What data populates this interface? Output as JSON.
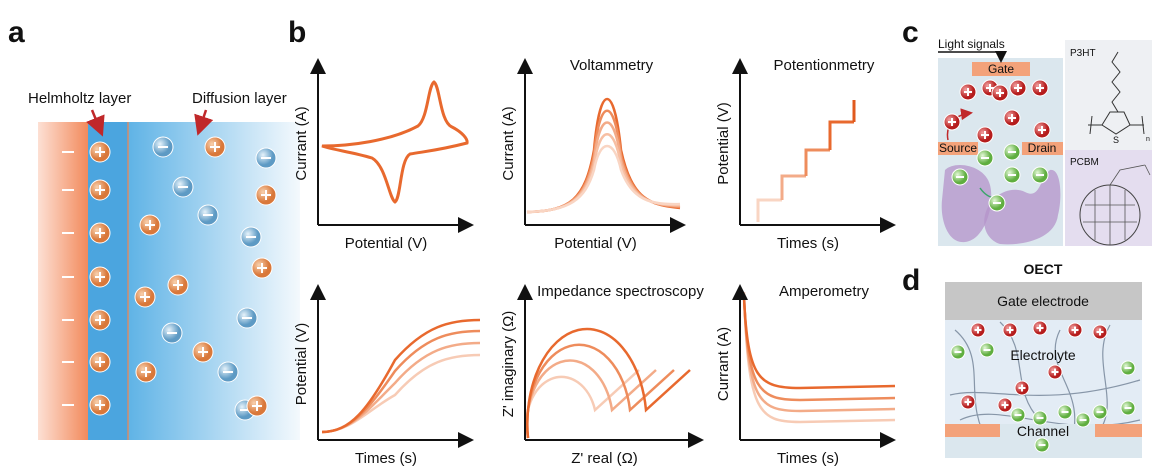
{
  "panel_a": {
    "label": "a",
    "helmholtz_label": "Helmholtz layer",
    "diffusion_label": "Diffusion layer"
  },
  "panel_b": {
    "label": "b",
    "plots": [
      {
        "x_label": "Potential (V)",
        "y_label": "Currant (A)"
      },
      {
        "title": "Voltammetry",
        "x_label": "Potential (V)",
        "y_label": "Currant (A)"
      },
      {
        "title": "Potentionmetry",
        "x_label": "Times (s)",
        "y_label": "Potential (V)"
      },
      {
        "x_label": "Times (s)",
        "y_label": "Potential (V)"
      },
      {
        "title": "Impedance spectroscopy",
        "x_label": "Z' real (Ω)",
        "y_label": "Z' imaginary (Ω)"
      },
      {
        "title": "Amperometry",
        "x_label": "Times (s)",
        "y_label": "Currant (A)"
      }
    ]
  },
  "panel_c": {
    "label": "c",
    "light_label": "Light signals",
    "gate": "Gate",
    "source": "Source",
    "drain": "Drain",
    "p3ht": "P3HT",
    "sulfur": "S",
    "repeat": "n",
    "pcbm": "PCBM"
  },
  "panel_d": {
    "label": "d",
    "title": "OECT",
    "gate_electrode": "Gate electrode",
    "electrolyte": "Electrolyte",
    "channel": "Channel"
  }
}
